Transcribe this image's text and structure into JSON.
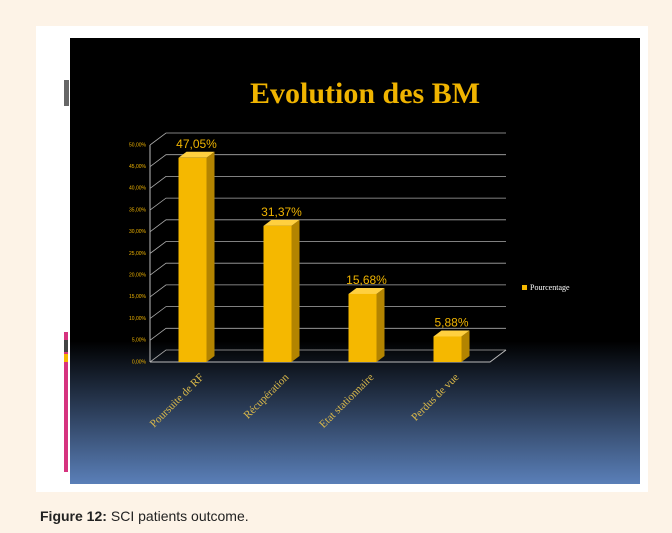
{
  "chart_data": {
    "type": "bar",
    "title": "Evolution des BM",
    "categories": [
      "Poursuite de RF",
      "Récupération",
      "Etat stationnaire",
      "Perdus de vue"
    ],
    "series": [
      {
        "name": "Pourcentage",
        "color": "#f5b800",
        "values": [
          47.05,
          31.37,
          15.68,
          5.88
        ],
        "value_labels": [
          "47,05%",
          "31,37%",
          "15,68%",
          "5,88%"
        ]
      }
    ],
    "ylim": [
      0,
      50
    ],
    "yticks": [
      {
        "value": 0,
        "label": "0,00%"
      },
      {
        "value": 5,
        "label": "5,00%"
      },
      {
        "value": 10,
        "label": "10,00%"
      },
      {
        "value": 15,
        "label": "15,00%"
      },
      {
        "value": 20,
        "label": "20,00%"
      },
      {
        "value": 25,
        "label": "25,00%"
      },
      {
        "value": 30,
        "label": "30,00%"
      },
      {
        "value": 35,
        "label": "35,00%"
      },
      {
        "value": 40,
        "label": "40,00%"
      },
      {
        "value": 45,
        "label": "45,00%"
      },
      {
        "value": 50,
        "label": "50,00%"
      }
    ],
    "grid": true,
    "legend": "right"
  },
  "caption": {
    "label": "Figure 12:",
    "text": "SCI patients outcome."
  }
}
